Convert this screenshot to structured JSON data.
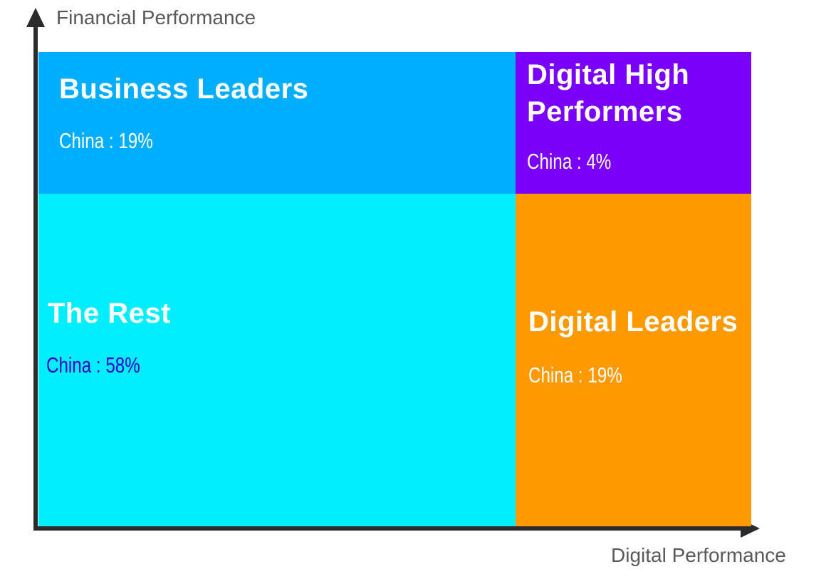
{
  "axes": {
    "y_label": "Financial Performance",
    "x_label": "Digital Performance",
    "axis_color": "#2b2b2b",
    "label_color": "#58595b"
  },
  "quadrants": {
    "business_leaders": {
      "title": "Business Leaders",
      "stat": "China : 19%",
      "bg_color": "#00AEFF",
      "title_color": "#ffffff",
      "stat_color": "#ffffff"
    },
    "digital_high_performers": {
      "title": "Digital High Performers",
      "stat": "China : 4%",
      "bg_color": "#7B00FA",
      "title_color": "#ffffff",
      "stat_color": "#ffffff"
    },
    "the_rest": {
      "title": "The Rest",
      "stat": "China : 58%",
      "bg_color": "#00EEFF",
      "title_color": "#ffffff",
      "stat_color": "#3300CC"
    },
    "digital_leaders": {
      "title": "Digital Leaders",
      "stat": "China : 19%",
      "bg_color": "#FF9900",
      "title_color": "#ffffff",
      "stat_color": "#ffffff"
    }
  },
  "chart_data": {
    "type": "quadrant",
    "title": "",
    "xlabel": "Digital Performance",
    "ylabel": "Financial Performance",
    "series_name": "China",
    "quadrants": [
      {
        "name": "Business Leaders",
        "position": "top-left",
        "digital_performance": "low",
        "financial_performance": "high",
        "series": "China",
        "value_pct": 19,
        "color": "#00AEFF"
      },
      {
        "name": "Digital High Performers",
        "position": "top-right",
        "digital_performance": "high",
        "financial_performance": "high",
        "series": "China",
        "value_pct": 4,
        "color": "#7B00FA"
      },
      {
        "name": "The Rest",
        "position": "bottom-left",
        "digital_performance": "low",
        "financial_performance": "low",
        "series": "China",
        "value_pct": 58,
        "color": "#00EEFF"
      },
      {
        "name": "Digital Leaders",
        "position": "bottom-right",
        "digital_performance": "high",
        "financial_performance": "low",
        "series": "China",
        "value_pct": 19,
        "color": "#FF9900"
      }
    ],
    "legend": "none",
    "grid": false
  }
}
